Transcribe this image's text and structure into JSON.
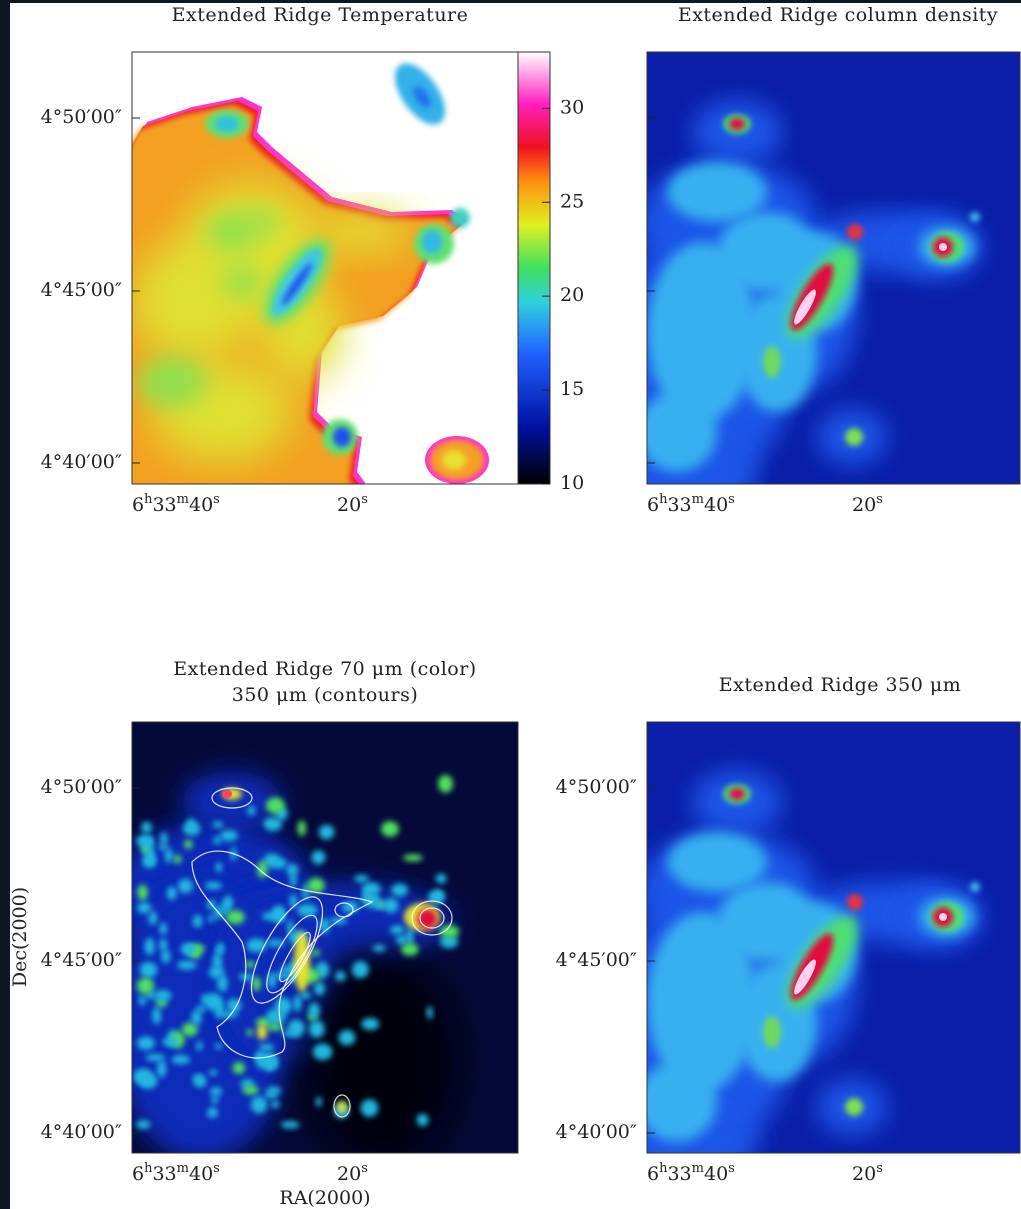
{
  "panels": [
    {
      "title": [
        "Extended Ridge Temperature"
      ],
      "dec_ticks": [
        "4°50′00″",
        "4°45′00″",
        "4°40′00″"
      ],
      "ra_ticks": [
        [
          "6",
          "h",
          "33",
          "m",
          "40",
          "s"
        ],
        [
          "20",
          "s"
        ]
      ],
      "colorbar": {
        "lim": [
          10,
          33
        ],
        "ticks": [
          10,
          15,
          20,
          25,
          30
        ]
      }
    },
    {
      "title": [
        "Extended Ridge column density"
      ],
      "ra_ticks": [
        [
          "6",
          "h",
          "33",
          "m",
          "40",
          "s"
        ],
        [
          "20",
          "s"
        ]
      ]
    },
    {
      "title": [
        "Extended Ridge 70 μm (color)",
        "350 μm (contours)"
      ],
      "dec_ticks": [
        "4°50′00″",
        "4°45′00″",
        "4°40′00″"
      ],
      "ra_ticks": [
        [
          "6",
          "h",
          "33",
          "m",
          "40",
          "s"
        ],
        [
          "20",
          "s"
        ]
      ]
    },
    {
      "title": [
        "Extended Ridge 350 μm"
      ],
      "dec_ticks": [
        "4°50′00″",
        "4°45′00″",
        "4°40′00″"
      ],
      "ra_ticks": [
        [
          "6",
          "h",
          "33",
          "m",
          "40",
          "s"
        ],
        [
          "20",
          "s"
        ]
      ]
    }
  ],
  "axes": {
    "x_label": "RA(2000)",
    "y_label": "Dec(2000)"
  }
}
